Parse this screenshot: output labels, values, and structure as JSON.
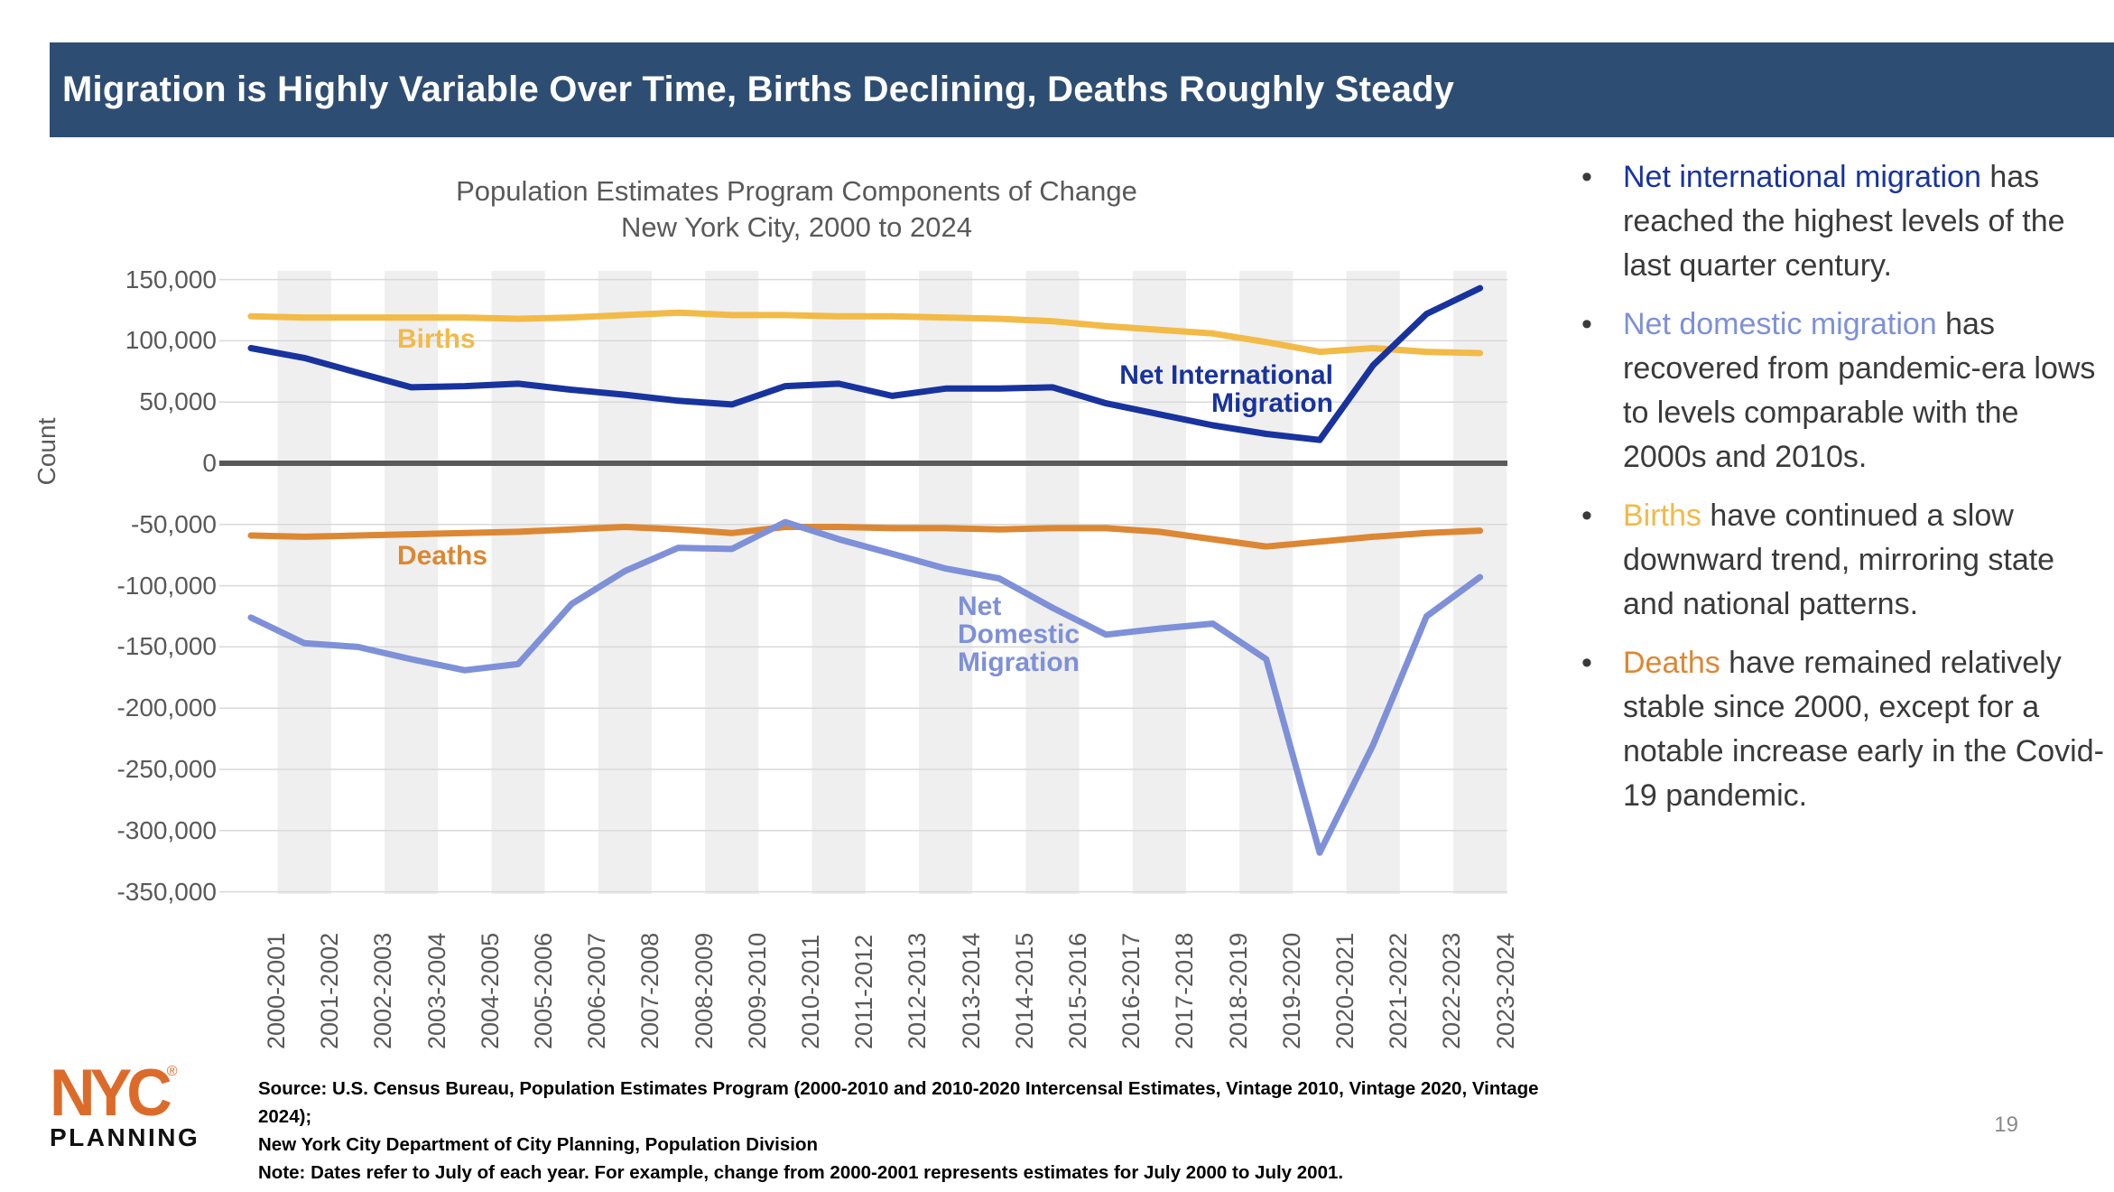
{
  "header": {
    "title": "Migration is Highly Variable Over Time, Births Declining, Deaths Roughly Steady"
  },
  "chart_data": {
    "type": "line",
    "title_line1": "Population Estimates Program Components of Change",
    "title_line2": "New York City, 2000 to 2024",
    "ylabel": "Count",
    "ylim": [
      -350000,
      150000
    ],
    "ytick_step": 50000,
    "ytick_labels": [
      "150,000",
      "100,000",
      "50,000",
      "0",
      "-50,000",
      "-100,000",
      "-150,000",
      "-200,000",
      "-250,000",
      "-300,000",
      "-350,000"
    ],
    "grid": "horizontal",
    "legend": "labels-on-chart",
    "categories": [
      "2000-2001",
      "2001-2002",
      "2002-2003",
      "2003-2004",
      "2004-2005",
      "2005-2006",
      "2006-2007",
      "2007-2008",
      "2008-2009",
      "2009-2010",
      "2010-2011",
      "2011-2012",
      "2012-2013",
      "2013-2014",
      "2014-2015",
      "2015-2016",
      "2016-2017",
      "2017-2018",
      "2018-2019",
      "2019-2020",
      "2020-2021",
      "2021-2022",
      "2022-2023",
      "2023-2024"
    ],
    "series": [
      {
        "name": "Births",
        "label": "Births",
        "color": "#F2BA47",
        "values": [
          120000,
          119000,
          119000,
          119000,
          119000,
          118000,
          119000,
          121000,
          123000,
          121000,
          121000,
          120000,
          120000,
          119000,
          118000,
          116000,
          112000,
          109000,
          106000,
          99000,
          91000,
          94000,
          91000,
          90000
        ]
      },
      {
        "name": "Deaths",
        "label": "Deaths",
        "color": "#DC8733",
        "values": [
          -59000,
          -60000,
          -59000,
          -58000,
          -57000,
          -56000,
          -54000,
          -52000,
          -54000,
          -57000,
          -52000,
          -52000,
          -53000,
          -53000,
          -54000,
          -53000,
          -53000,
          -56000,
          -62000,
          -68000,
          -64000,
          -60000,
          -57000,
          -55000
        ]
      },
      {
        "name": "Net Domestic Migration",
        "label": "Net\nDomestic\nMigration",
        "color": "#7E90D8",
        "values": [
          -126000,
          -147000,
          -150000,
          -160000,
          -169000,
          -164000,
          -115000,
          -88000,
          -69000,
          -70000,
          -48000,
          -62000,
          -74000,
          -86000,
          -94000,
          -118000,
          -140000,
          -135000,
          -131000,
          -160000,
          -318000,
          -230000,
          -125000,
          -93000
        ]
      },
      {
        "name": "Net International Migration",
        "label": "Net International\nMigration",
        "color": "#18339E",
        "values": [
          94000,
          86000,
          74000,
          62000,
          63000,
          65000,
          60000,
          56000,
          51000,
          48000,
          63000,
          65000,
          55000,
          61000,
          61000,
          62000,
          49000,
          40000,
          31000,
          24000,
          19000,
          80000,
          122000,
          143000
        ]
      }
    ]
  },
  "bullets": [
    {
      "lead": "Net international migration",
      "lead_color": "#18339E",
      "rest": " has reached the highest levels of the last quarter century."
    },
    {
      "lead": "Net domestic migration",
      "lead_color": "#7E90D8",
      "rest": " has recovered from pandemic-era lows to levels comparable with the 2000s and 2010s."
    },
    {
      "lead": "Births",
      "lead_color": "#F2BA47",
      "rest": " have continued a slow downward trend, mirroring state and national patterns."
    },
    {
      "lead": "Deaths",
      "lead_color": "#DC8733",
      "rest": " have remained relatively stable since 2000, except for a notable increase early in the Covid-19 pandemic."
    }
  ],
  "source": {
    "line1": "Source: U.S. Census Bureau, Population Estimates Program (2000-2010 and 2010-2020 Intercensal Estimates, Vintage 2010, Vintage 2020, Vintage 2024);",
    "line2": "New York City Department of City Planning, Population Division",
    "line3": "Note: Dates refer to July of each year. For example, change from 2000-2001 represents estimates for July 2000 to July 2001."
  },
  "logo": {
    "nyc": "NYC",
    "registered": "®",
    "planning": "PLANNING"
  },
  "page_number": "19",
  "colors": {
    "header_bg": "#2E4D72",
    "gridline": "#D9D9D9",
    "zero_line": "#595959",
    "band": "#EFEFEF",
    "axis_text": "#595959",
    "logo_orange": "#DC6B2A",
    "page_number": "#8A8A8A"
  }
}
